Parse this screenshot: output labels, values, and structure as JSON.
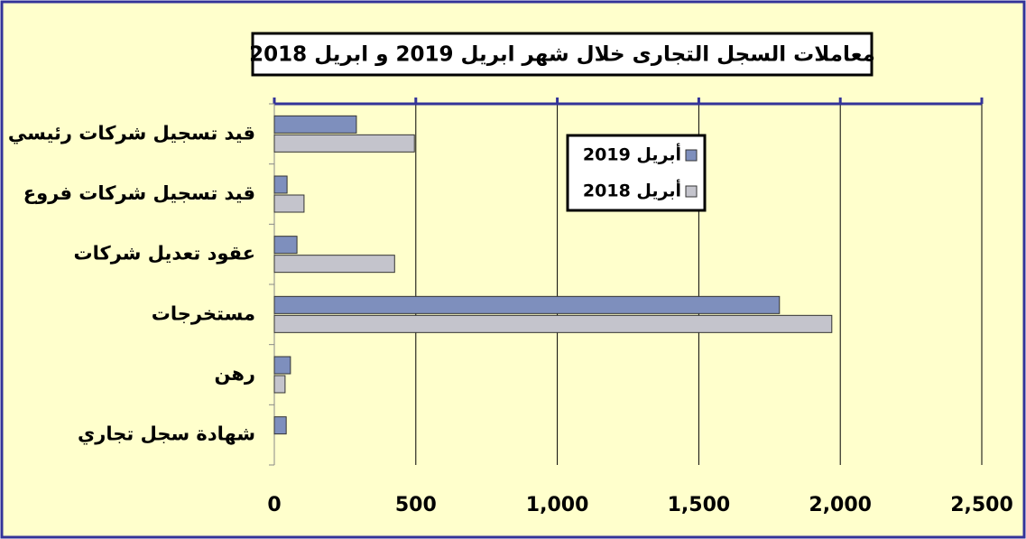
{
  "chart_data": {
    "type": "hbar",
    "title": "معاملات السجل التجارى خلال شهر ابريل 2019 و ابريل 2018",
    "categories": [
      "قيد تسجيل شركات رئيسي",
      "قيد تسجيل شركات فروع",
      "عقود تعديل شركات",
      "مستخرجات",
      "رهن",
      "شهادة سجل تجاري"
    ],
    "series": [
      {
        "name": "أبريل 2019",
        "color": "#7e8fbd",
        "values": [
          290,
          45,
          80,
          1785,
          57,
          42
        ]
      },
      {
        "name": "أبريل 2018",
        "color": "#c4c4cc",
        "values": [
          495,
          105,
          425,
          1970,
          38,
          0
        ]
      }
    ],
    "xlim": [
      0,
      2500
    ],
    "xticks": [
      0,
      500,
      {
        "value": 1000,
        "label": "1,000"
      },
      {
        "value": 1500,
        "label": "1,500"
      },
      {
        "value": 2000,
        "label": "2,000"
      },
      {
        "value": 2500,
        "label": "2,500"
      }
    ],
    "grid": true
  }
}
